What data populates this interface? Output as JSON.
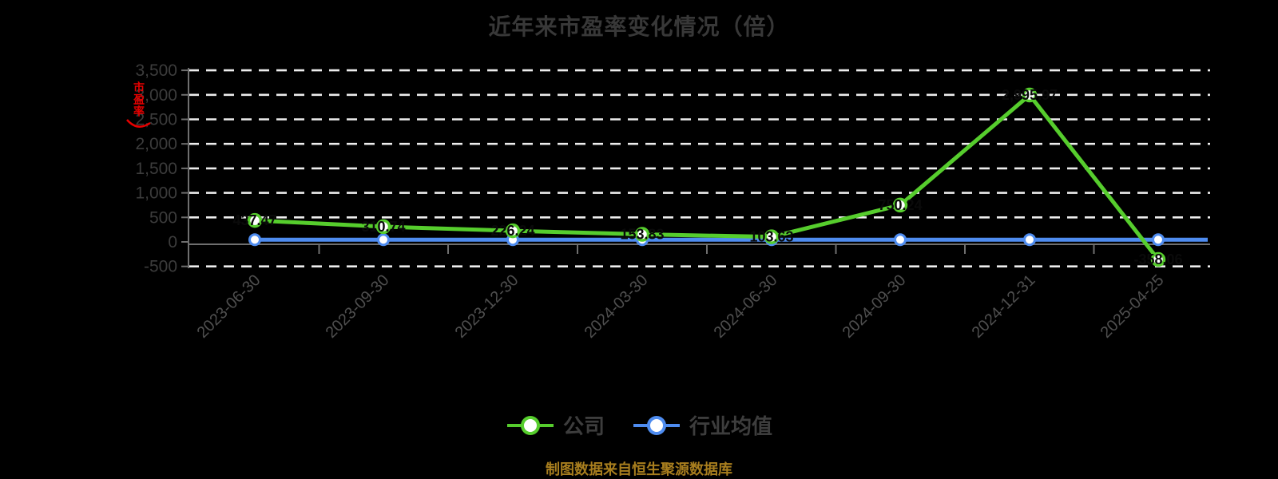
{
  "title": "近年来市盈率变化情况（倍）",
  "y_axis_annotation": {
    "text": "市盈率",
    "color": "#e60000"
  },
  "legend": {
    "items": [
      {
        "label": "公司",
        "color": "#56cd2d"
      },
      {
        "label": "行业均值",
        "color": "#4e8cf0"
      }
    ]
  },
  "footer": {
    "text": "制图数据来自恒生聚源数据库",
    "color": "#a87e1e"
  },
  "colors": {
    "background": "#000000",
    "grid": "#ededed",
    "axis": "#6f6f6f",
    "title": "#383838",
    "ytick_text": "#3c3c3c",
    "xtick_text": "#4f4f4f",
    "data_label": "#0a0a0a",
    "marker_fill": "#ffffff"
  },
  "chart_data": {
    "type": "line",
    "title": "近年来市盈率变化情况（倍）",
    "xlabel": "",
    "ylabel": "市盈率",
    "categories": [
      "2023-06-30",
      "2023-09-30",
      "2023-12-30",
      "2024-03-30",
      "2024-06-30",
      "2024-09-30",
      "2024-12-31",
      "2025-04-25"
    ],
    "series": [
      {
        "name": "公司",
        "color": "#56cd2d",
        "values": [
          437.47,
          310.74,
          226.24,
          153.83,
          103.63,
          750.24,
          2995.97,
          -358.06
        ],
        "labels": [
          "437.47",
          "310.74",
          "226.24",
          "153.83",
          "103.63",
          "750.24",
          "2,995.97",
          "-358.06"
        ]
      },
      {
        "name": "行业均值",
        "color": "#4e8cf0",
        "values": [
          45,
          45,
          45,
          45,
          45,
          45,
          45,
          45
        ],
        "labels": []
      }
    ],
    "ylim": [
      -500,
      3500
    ],
    "yticks": [
      "3,500",
      "3,000",
      "2,500",
      "2,000",
      "1,500",
      "1,000",
      "500",
      "0",
      "-500"
    ],
    "ytick_values": [
      3500,
      3000,
      2500,
      2000,
      1500,
      1000,
      500,
      0,
      -500
    ],
    "grid": "horizontal-dashed-white",
    "legend_position": "bottom"
  }
}
